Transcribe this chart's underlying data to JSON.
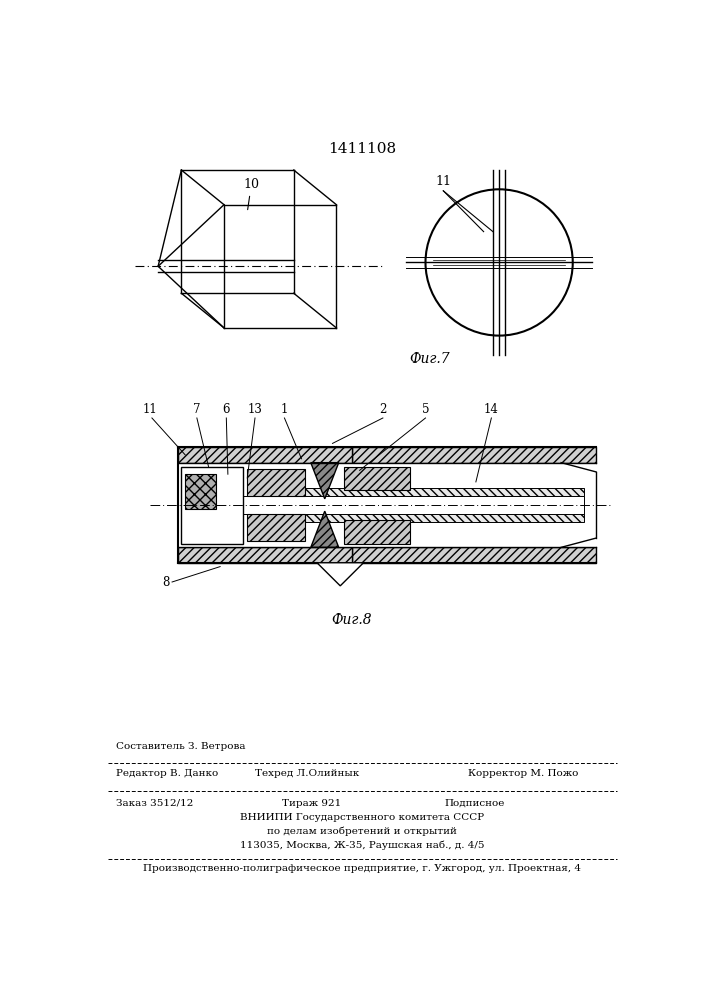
{
  "title_number": "1411108",
  "fig7_label": "Фиг.7",
  "fig8_label": "Фиг.8",
  "bg_color": "#ffffff"
}
